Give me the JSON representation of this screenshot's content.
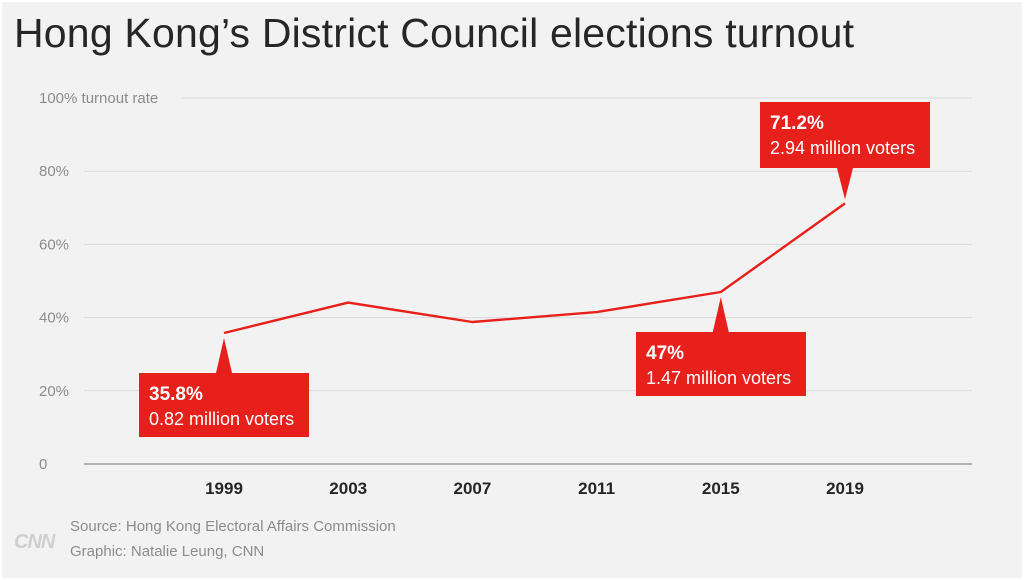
{
  "title": "Hong Kong’s District Council elections turnout",
  "chart_data": {
    "type": "line",
    "title": "Hong Kong’s District Council elections turnout",
    "xlabel": "",
    "ylabel": "turnout rate",
    "x": [
      1999,
      2003,
      2007,
      2011,
      2015,
      2019
    ],
    "categories": [
      "1999",
      "2003",
      "2007",
      "2011",
      "2015",
      "2019"
    ],
    "values": [
      35.8,
      44.1,
      38.8,
      41.5,
      47.0,
      71.2
    ],
    "ylim": [
      0,
      100
    ],
    "yticks": [
      0,
      20,
      40,
      60,
      80,
      100
    ],
    "ytick_labels": [
      "0",
      "20%",
      "40%",
      "60%",
      "80%",
      "100% turnout rate"
    ],
    "line_color": "#e8201c",
    "annotations": [
      {
        "year": 1999,
        "pct": "35.8%",
        "voters": "0.82 million voters"
      },
      {
        "year": 2015,
        "pct": "47%",
        "voters": "1.47 million voters"
      },
      {
        "year": 2019,
        "pct": "71.2%",
        "voters": "2.94 million voters"
      }
    ]
  },
  "footer": {
    "source": "Source: Hong Kong Electoral Affairs Commission",
    "graphic": "Graphic: Natalie Leung, CNN",
    "logo": "CNN"
  }
}
